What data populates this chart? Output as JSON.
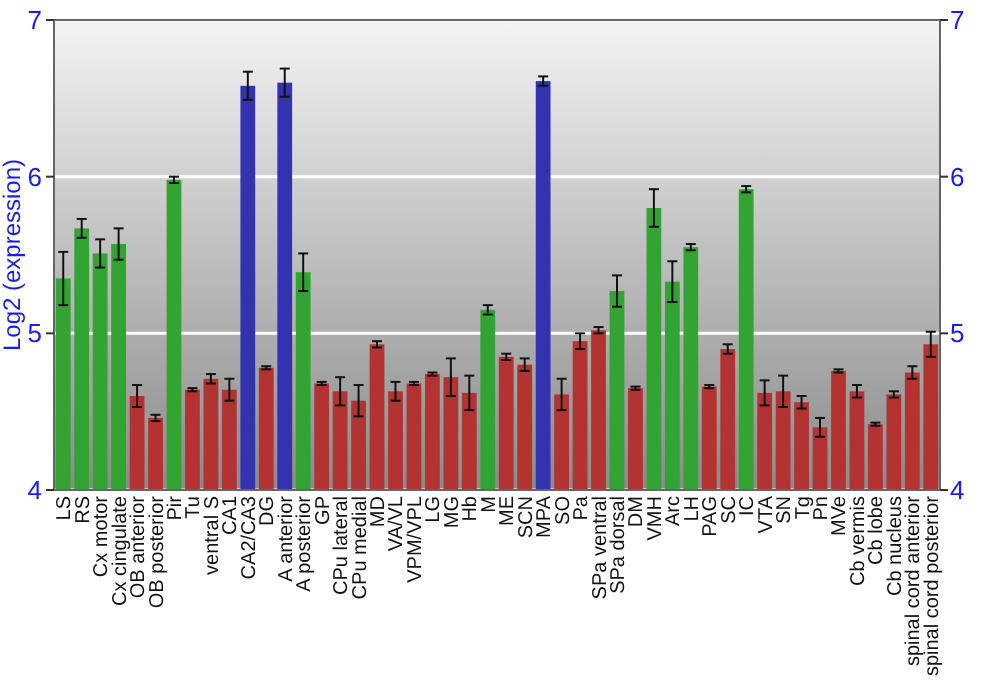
{
  "chart_data": {
    "type": "bar",
    "ylabel": "Log2 (expression)",
    "categories": [
      "LS",
      "RS",
      "Cx motor",
      "Cx cingulate",
      "OB anterior",
      "OB posterior",
      "Pir",
      "Tu",
      "ventral S",
      "CA1",
      "CA2/CA3",
      "DG",
      "A anterior",
      "A posterior",
      "GP",
      "CPu lateral",
      "CPu medial",
      "MD",
      "VA/VL",
      "VPM/VPL",
      "LG",
      "MG",
      "Hb",
      "M",
      "ME",
      "SCN",
      "MPA",
      "SO",
      "Pa",
      "SPa ventral",
      "SPa dorsal",
      "DM",
      "VMH",
      "Arc",
      "LH",
      "PAG",
      "SC",
      "IC",
      "VTA",
      "SN",
      "Tg",
      "Pn",
      "MVe",
      "Cb vermis",
      "Cb lobe",
      "Cb nucleus",
      "spinal cord anterior",
      "spinal cord posterior"
    ],
    "values": [
      5.35,
      5.67,
      5.51,
      5.57,
      4.6,
      4.46,
      5.98,
      4.64,
      4.71,
      4.64,
      6.58,
      4.78,
      6.6,
      5.39,
      4.68,
      4.63,
      4.57,
      4.93,
      4.63,
      4.68,
      4.74,
      4.72,
      4.62,
      5.15,
      4.85,
      4.8,
      6.61,
      4.61,
      4.95,
      5.02,
      5.27,
      4.65,
      5.8,
      5.33,
      5.55,
      4.66,
      4.9,
      5.92,
      4.62,
      4.63,
      4.56,
      4.4,
      4.76,
      4.63,
      4.42,
      4.61,
      4.75,
      4.93
    ],
    "errors": [
      0.17,
      0.06,
      0.09,
      0.1,
      0.07,
      0.02,
      0.02,
      0.01,
      0.03,
      0.07,
      0.09,
      0.01,
      0.09,
      0.12,
      0.01,
      0.09,
      0.1,
      0.02,
      0.06,
      0.01,
      0.01,
      0.12,
      0.11,
      0.03,
      0.02,
      0.04,
      0.03,
      0.1,
      0.05,
      0.02,
      0.1,
      0.01,
      0.12,
      0.13,
      0.02,
      0.01,
      0.03,
      0.02,
      0.08,
      0.1,
      0.04,
      0.06,
      0.01,
      0.04,
      0.01,
      0.02,
      0.04,
      0.08
    ],
    "colors": [
      "#33a333",
      "#33a333",
      "#33a333",
      "#33a333",
      "#b33333",
      "#b33333",
      "#33a333",
      "#b33333",
      "#b33333",
      "#b33333",
      "#3333b0",
      "#b33333",
      "#3333b0",
      "#33a333",
      "#b33333",
      "#b33333",
      "#b33333",
      "#b33333",
      "#b33333",
      "#b33333",
      "#b33333",
      "#b33333",
      "#b33333",
      "#33a333",
      "#b33333",
      "#b33333",
      "#3333b0",
      "#b33333",
      "#b33333",
      "#b33333",
      "#33a333",
      "#b33333",
      "#33a333",
      "#33a333",
      "#33a333",
      "#b33333",
      "#b33333",
      "#33a333",
      "#b33333",
      "#b33333",
      "#b33333",
      "#b33333",
      "#b33333",
      "#b33333",
      "#b33333",
      "#b33333",
      "#b33333",
      "#b33333"
    ],
    "ylim": [
      4,
      7
    ],
    "yticks": [
      4,
      5,
      6,
      7
    ],
    "y2lim": [
      4,
      7
    ],
    "y2ticks": [
      4,
      5,
      6,
      7
    ],
    "grid": "y"
  }
}
